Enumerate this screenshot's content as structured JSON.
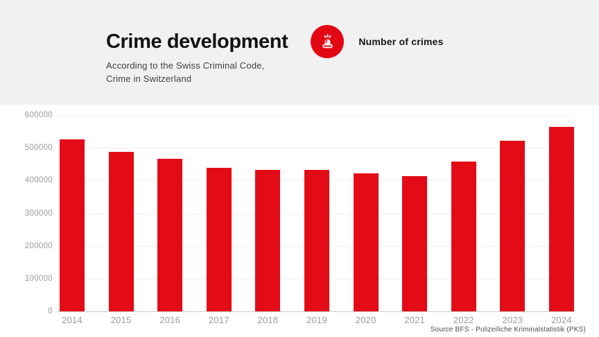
{
  "header": {
    "title": "Crime development",
    "subtitle_line1": "According to the Swiss Criminal Code,",
    "subtitle_line2": "Crime in Switzerland",
    "legend_label": "Number of crimes",
    "legend_icon": "siren-icon"
  },
  "source_note": "Source BFS - Polizeiliche Kriminalstatistik (PKS)",
  "colors": {
    "bar": "#e30b16",
    "accent_badge": "#e30613",
    "header_background": "#f1f1f1",
    "gridline": "#efefef",
    "axis_line": "#c9c9c9",
    "axis_text": "#9b9b9b"
  },
  "chart_data": {
    "type": "bar",
    "title": "Crime development",
    "subtitle": "According to the Swiss Criminal Code, Crime in Switzerland",
    "categories": [
      "2014",
      "2015",
      "2016",
      "2017",
      "2018",
      "2019",
      "2020",
      "2021",
      "2022",
      "2023",
      "2024"
    ],
    "values": [
      526000,
      487500,
      466500,
      439000,
      432000,
      432500,
      421500,
      413500,
      458500,
      522500,
      563500
    ],
    "series_name": "Number of crimes",
    "xlabel": "",
    "ylabel": "",
    "ylim": [
      0,
      600000
    ],
    "yticks": [
      0,
      100000,
      200000,
      300000,
      400000,
      500000,
      600000
    ],
    "grid": true,
    "legend": [
      "Number of crimes"
    ],
    "legend_position": "top-right-of-title",
    "bar_color": "#e30b16",
    "source": "Source BFS - Polizeiliche Kriminalstatistik (PKS)"
  }
}
